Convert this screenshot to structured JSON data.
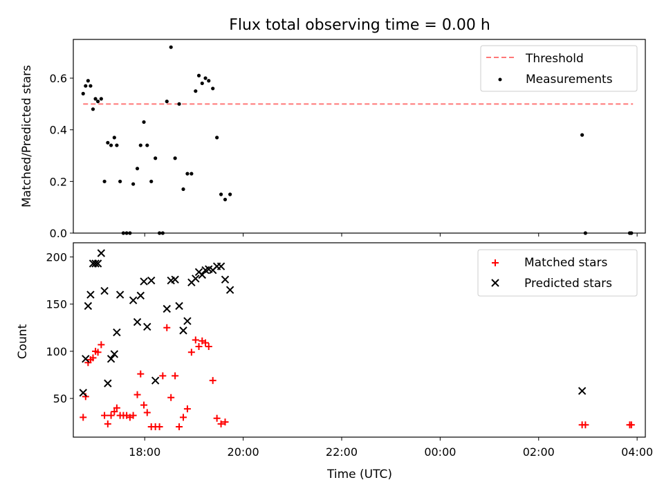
{
  "chart_data": [
    {
      "type": "scatter",
      "title": "Flux total observing time = 0.00 h",
      "ylabel": "Matched/Predicted stars",
      "xlabel": "",
      "xlim": [
        "16:33",
        "04:10"
      ],
      "ylim": [
        0,
        0.75
      ],
      "y_ticks": [
        0.0,
        0.2,
        0.4,
        0.6
      ],
      "y_tick_labels": [
        "0.0",
        "0.2",
        "0.4",
        "0.6"
      ],
      "grid": false,
      "legend_position": "upper right",
      "threshold": {
        "name": "Threshold",
        "y": 0.5,
        "x": [
          "16:45",
          "03:55"
        ],
        "color": "#ff7777",
        "style": "dashed"
      },
      "series": [
        {
          "name": "Measurements",
          "marker": "dot",
          "color": "#000000",
          "points": [
            [
              "16:45",
              0.54
            ],
            [
              "16:48",
              0.57
            ],
            [
              "16:51",
              0.59
            ],
            [
              "16:54",
              0.57
            ],
            [
              "16:57",
              0.48
            ],
            [
              "17:00",
              0.52
            ],
            [
              "17:03",
              0.51
            ],
            [
              "17:07",
              0.52
            ],
            [
              "17:11",
              0.2
            ],
            [
              "17:15",
              0.35
            ],
            [
              "17:19",
              0.34
            ],
            [
              "17:23",
              0.37
            ],
            [
              "17:26",
              0.34
            ],
            [
              "17:30",
              0.2
            ],
            [
              "17:34",
              0.0
            ],
            [
              "17:38",
              0.0
            ],
            [
              "17:42",
              0.0
            ],
            [
              "17:46",
              0.19
            ],
            [
              "17:51",
              0.25
            ],
            [
              "17:55",
              0.34
            ],
            [
              "17:59",
              0.43
            ],
            [
              "18:03",
              0.34
            ],
            [
              "18:08",
              0.2
            ],
            [
              "18:13",
              0.29
            ],
            [
              "18:18",
              0.0
            ],
            [
              "18:22",
              0.0
            ],
            [
              "18:27",
              0.51
            ],
            [
              "18:32",
              0.72
            ],
            [
              "18:37",
              0.29
            ],
            [
              "18:42",
              0.5
            ],
            [
              "18:47",
              0.17
            ],
            [
              "18:52",
              0.23
            ],
            [
              "18:57",
              0.23
            ],
            [
              "19:02",
              0.55
            ],
            [
              "19:06",
              0.61
            ],
            [
              "19:10",
              0.58
            ],
            [
              "19:14",
              0.6
            ],
            [
              "19:18",
              0.59
            ],
            [
              "19:23",
              0.56
            ],
            [
              "19:28",
              0.37
            ],
            [
              "19:33",
              0.15
            ],
            [
              "19:38",
              0.13
            ],
            [
              "19:44",
              0.15
            ],
            [
              "02:53",
              0.38
            ],
            [
              "02:57",
              0.0
            ],
            [
              "03:51",
              0.0
            ],
            [
              "03:53",
              0.0
            ]
          ]
        }
      ]
    },
    {
      "type": "scatter",
      "title": "",
      "ylabel": "Count",
      "xlabel": "Time (UTC)",
      "xlim": [
        "16:33",
        "04:10"
      ],
      "ylim": [
        9,
        215
      ],
      "y_ticks": [
        50,
        100,
        150,
        200
      ],
      "y_tick_labels": [
        "50",
        "100",
        "150",
        "200"
      ],
      "x_ticks": [
        "18:00",
        "20:00",
        "22:00",
        "00:00",
        "02:00",
        "04:00"
      ],
      "x_tick_labels": [
        "18:00",
        "20:00",
        "22:00",
        "00:00",
        "02:00",
        "04:00"
      ],
      "grid": false,
      "legend_position": "upper right",
      "series": [
        {
          "name": "Matched stars",
          "marker": "plus",
          "color": "#ff0000",
          "points": [
            [
              "16:45",
              30
            ],
            [
              "16:48",
              52
            ],
            [
              "16:51",
              88
            ],
            [
              "16:54",
              91
            ],
            [
              "16:57",
              93
            ],
            [
              "17:00",
              100
            ],
            [
              "17:03",
              99
            ],
            [
              "17:07",
              107
            ],
            [
              "17:11",
              32
            ],
            [
              "17:15",
              23
            ],
            [
              "17:19",
              32
            ],
            [
              "17:23",
              36
            ],
            [
              "17:26",
              40
            ],
            [
              "17:30",
              32
            ],
            [
              "17:34",
              32
            ],
            [
              "17:38",
              32
            ],
            [
              "17:42",
              30
            ],
            [
              "17:46",
              32
            ],
            [
              "17:51",
              54
            ],
            [
              "17:55",
              76
            ],
            [
              "17:59",
              43
            ],
            [
              "18:03",
              35
            ],
            [
              "18:08",
              20
            ],
            [
              "18:13",
              20
            ],
            [
              "18:18",
              20
            ],
            [
              "18:22",
              74
            ],
            [
              "18:27",
              125
            ],
            [
              "18:32",
              51
            ],
            [
              "18:37",
              74
            ],
            [
              "18:42",
              20
            ],
            [
              "18:47",
              30
            ],
            [
              "18:52",
              39
            ],
            [
              "18:57",
              99
            ],
            [
              "19:02",
              112
            ],
            [
              "19:06",
              105
            ],
            [
              "19:10",
              111
            ],
            [
              "19:14",
              109
            ],
            [
              "19:18",
              105
            ],
            [
              "19:23",
              69
            ],
            [
              "19:28",
              29
            ],
            [
              "19:33",
              23
            ],
            [
              "19:38",
              25
            ],
            [
              "02:53",
              22
            ],
            [
              "02:57",
              22
            ],
            [
              "03:51",
              22
            ],
            [
              "03:53",
              22
            ]
          ]
        },
        {
          "name": "Predicted stars",
          "marker": "x",
          "color": "#000000",
          "points": [
            [
              "16:45",
              56
            ],
            [
              "16:48",
              92
            ],
            [
              "16:51",
              148
            ],
            [
              "16:54",
              160
            ],
            [
              "16:57",
              193
            ],
            [
              "17:00",
              193
            ],
            [
              "17:03",
              193
            ],
            [
              "17:07",
              204
            ],
            [
              "17:11",
              164
            ],
            [
              "17:15",
              66
            ],
            [
              "17:19",
              92
            ],
            [
              "17:23",
              97
            ],
            [
              "17:26",
              120
            ],
            [
              "17:30",
              160
            ],
            [
              "17:46",
              154
            ],
            [
              "17:51",
              131
            ],
            [
              "17:55",
              159
            ],
            [
              "17:59",
              174
            ],
            [
              "18:03",
              126
            ],
            [
              "18:08",
              175
            ],
            [
              "18:13",
              69
            ],
            [
              "18:27",
              145
            ],
            [
              "18:32",
              175
            ],
            [
              "18:37",
              176
            ],
            [
              "18:42",
              148
            ],
            [
              "18:47",
              122
            ],
            [
              "18:52",
              132
            ],
            [
              "18:57",
              173
            ],
            [
              "19:02",
              177
            ],
            [
              "19:06",
              184
            ],
            [
              "19:10",
              181
            ],
            [
              "19:14",
              186
            ],
            [
              "19:18",
              187
            ],
            [
              "19:23",
              186
            ],
            [
              "19:28",
              190
            ],
            [
              "19:33",
              190
            ],
            [
              "19:38",
              176
            ],
            [
              "19:44",
              165
            ],
            [
              "02:53",
              58
            ]
          ]
        }
      ]
    }
  ]
}
